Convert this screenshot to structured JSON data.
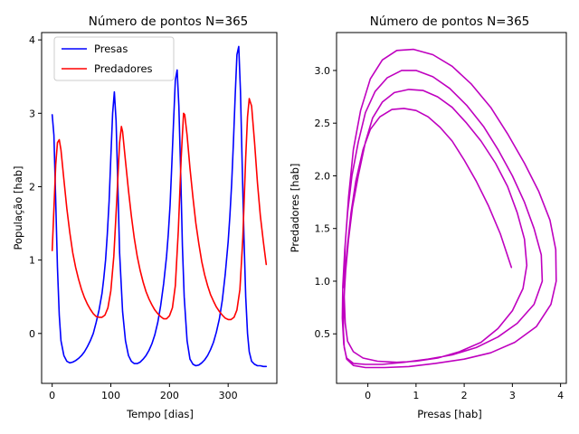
{
  "chart_data": [
    {
      "type": "line",
      "title": "Número de pontos N=365",
      "xlabel": "Tempo [dias]",
      "ylabel": "População [hab]",
      "xlim": [
        -18,
        383
      ],
      "ylim": [
        -0.68,
        4.1
      ],
      "xticks": [
        0,
        100,
        200,
        300
      ],
      "yticks": [
        0,
        1,
        2,
        3,
        4
      ],
      "grid": false,
      "legend": "top-left",
      "series": [
        {
          "name": "Presas",
          "color": "#0000ff",
          "x": [
            0,
            3,
            6,
            9,
            12,
            15,
            20,
            25,
            30,
            35,
            40,
            45,
            50,
            55,
            60,
            65,
            70,
            75,
            80,
            85,
            88,
            91,
            94,
            97,
            100,
            103,
            106,
            109,
            112,
            115,
            120,
            125,
            130,
            135,
            140,
            145,
            150,
            155,
            160,
            165,
            170,
            175,
            180,
            185,
            190,
            195,
            198,
            201,
            204,
            207,
            210,
            213,
            216,
            219,
            222,
            225,
            230,
            235,
            240,
            245,
            250,
            255,
            260,
            265,
            270,
            275,
            280,
            285,
            290,
            295,
            300,
            303,
            306,
            309,
            312,
            315,
            318,
            321,
            324,
            327,
            330,
            333,
            336,
            340,
            345,
            350,
            355,
            360,
            365
          ],
          "y": [
            2.98,
            2.7,
            1.8,
            0.9,
            0.25,
            -0.1,
            -0.3,
            -0.38,
            -0.4,
            -0.39,
            -0.37,
            -0.34,
            -0.3,
            -0.25,
            -0.18,
            -0.1,
            0.0,
            0.15,
            0.32,
            0.55,
            0.75,
            1.0,
            1.35,
            1.8,
            2.4,
            3.0,
            3.29,
            2.9,
            2.0,
            1.1,
            0.3,
            -0.1,
            -0.3,
            -0.38,
            -0.41,
            -0.41,
            -0.39,
            -0.35,
            -0.3,
            -0.23,
            -0.14,
            -0.02,
            0.15,
            0.38,
            0.68,
            1.05,
            1.35,
            1.75,
            2.3,
            2.9,
            3.45,
            3.59,
            3.1,
            2.2,
            1.2,
            0.5,
            -0.1,
            -0.35,
            -0.42,
            -0.44,
            -0.43,
            -0.4,
            -0.36,
            -0.3,
            -0.22,
            -0.12,
            0.02,
            0.2,
            0.45,
            0.8,
            1.25,
            1.6,
            2.05,
            2.6,
            3.25,
            3.8,
            3.91,
            3.3,
            2.3,
            1.3,
            0.5,
            0.0,
            -0.25,
            -0.38,
            -0.42,
            -0.44,
            -0.44,
            -0.45,
            -0.45
          ]
        },
        {
          "name": "Predadores",
          "color": "#ff0000",
          "x": [
            0,
            3,
            6,
            9,
            12,
            15,
            20,
            25,
            30,
            35,
            40,
            45,
            50,
            55,
            60,
            65,
            70,
            75,
            80,
            85,
            90,
            95,
            100,
            105,
            110,
            115,
            118,
            120,
            125,
            130,
            135,
            140,
            145,
            150,
            155,
            160,
            165,
            170,
            175,
            180,
            185,
            190,
            195,
            200,
            205,
            210,
            215,
            220,
            224,
            226,
            230,
            235,
            240,
            245,
            250,
            255,
            260,
            265,
            270,
            275,
            280,
            285,
            290,
            295,
            300,
            305,
            310,
            315,
            320,
            325,
            330,
            333,
            336,
            340,
            345,
            350,
            355,
            360,
            365
          ],
          "y": [
            1.13,
            1.7,
            2.3,
            2.6,
            2.64,
            2.5,
            2.1,
            1.7,
            1.38,
            1.1,
            0.9,
            0.74,
            0.6,
            0.49,
            0.4,
            0.33,
            0.27,
            0.23,
            0.22,
            0.22,
            0.25,
            0.35,
            0.58,
            1.05,
            1.8,
            2.6,
            2.82,
            2.75,
            2.35,
            1.95,
            1.6,
            1.3,
            1.05,
            0.86,
            0.7,
            0.57,
            0.47,
            0.39,
            0.32,
            0.27,
            0.23,
            0.2,
            0.2,
            0.24,
            0.35,
            0.65,
            1.4,
            2.4,
            3.0,
            2.98,
            2.7,
            2.25,
            1.85,
            1.5,
            1.22,
            0.98,
            0.8,
            0.65,
            0.53,
            0.44,
            0.36,
            0.3,
            0.25,
            0.21,
            0.19,
            0.19,
            0.22,
            0.32,
            0.6,
            1.3,
            2.4,
            2.95,
            3.2,
            3.1,
            2.6,
            2.05,
            1.6,
            1.25,
            0.94
          ]
        }
      ]
    },
    {
      "type": "line",
      "title": "Número de pontos N=365",
      "xlabel": "Presas [hab]",
      "ylabel": "Predadores [hab]",
      "xlim": [
        -0.65,
        4.12
      ],
      "ylim": [
        0.03,
        3.36
      ],
      "xticks": [
        0,
        1,
        2,
        3,
        4
      ],
      "yticks": [
        0.5,
        1.0,
        1.5,
        2.0,
        2.5,
        3.0
      ],
      "grid": false,
      "series": [
        {
          "color": "#bf00bf",
          "x": [
            2.98,
            2.75,
            2.5,
            2.25,
            2.0,
            1.75,
            1.5,
            1.25,
            1.0,
            0.75,
            0.5,
            0.25,
            0.05,
            -0.1,
            -0.25,
            -0.35,
            -0.42,
            -0.47,
            -0.49,
            -0.47,
            -0.42,
            -0.3,
            -0.1,
            0.2,
            0.6,
            1.0,
            1.45,
            1.9,
            2.35,
            2.7,
            3.0,
            3.22,
            3.3,
            3.25,
            3.1,
            2.9,
            2.65,
            2.35,
            2.05,
            1.75,
            1.45,
            1.15,
            0.85,
            0.55,
            0.3,
            0.1,
            -0.05,
            -0.2,
            -0.32,
            -0.4,
            -0.46,
            -0.5,
            -0.51,
            -0.49,
            -0.44,
            -0.3,
            -0.05,
            0.3,
            0.75,
            1.25,
            1.75,
            2.25,
            2.7,
            3.1,
            3.45,
            3.62,
            3.6,
            3.45,
            3.25,
            3.0,
            2.7,
            2.4,
            2.05,
            1.7,
            1.35,
            1.0,
            0.7,
            0.4,
            0.15,
            -0.05,
            -0.2,
            -0.33,
            -0.42,
            -0.48,
            -0.52,
            -0.53,
            -0.5,
            -0.44,
            -0.3,
            -0.05,
            0.35,
            0.85,
            1.4,
            2.0,
            2.55,
            3.05,
            3.5,
            3.8,
            3.91,
            3.9,
            3.78,
            3.55,
            3.25,
            2.9,
            2.55,
            2.15,
            1.75,
            1.35,
            0.95,
            0.6,
            0.3,
            0.05,
            -0.15,
            -0.3,
            -0.4,
            -0.47,
            -0.5
          ],
          "y": [
            1.13,
            1.45,
            1.72,
            1.95,
            2.15,
            2.33,
            2.46,
            2.56,
            2.62,
            2.64,
            2.63,
            2.56,
            2.44,
            2.25,
            1.95,
            1.65,
            1.35,
            1.1,
            0.85,
            0.6,
            0.43,
            0.33,
            0.27,
            0.24,
            0.23,
            0.24,
            0.27,
            0.33,
            0.42,
            0.55,
            0.72,
            0.93,
            1.15,
            1.4,
            1.65,
            1.9,
            2.12,
            2.33,
            2.5,
            2.65,
            2.75,
            2.81,
            2.82,
            2.79,
            2.7,
            2.55,
            2.32,
            2.0,
            1.7,
            1.4,
            1.1,
            0.8,
            0.55,
            0.37,
            0.27,
            0.22,
            0.21,
            0.21,
            0.23,
            0.26,
            0.3,
            0.37,
            0.47,
            0.6,
            0.78,
            1.0,
            1.25,
            1.5,
            1.75,
            2.0,
            2.25,
            2.47,
            2.67,
            2.83,
            2.94,
            3.0,
            3.0,
            2.93,
            2.8,
            2.6,
            2.32,
            2.0,
            1.65,
            1.3,
            0.95,
            0.65,
            0.4,
            0.26,
            0.2,
            0.18,
            0.18,
            0.19,
            0.22,
            0.26,
            0.32,
            0.42,
            0.57,
            0.78,
            1.0,
            1.3,
            1.58,
            1.85,
            2.12,
            2.4,
            2.65,
            2.87,
            3.04,
            3.15,
            3.2,
            3.19,
            3.1,
            2.92,
            2.62,
            2.25,
            1.8,
            1.35,
            0.94
          ]
        }
      ]
    }
  ]
}
